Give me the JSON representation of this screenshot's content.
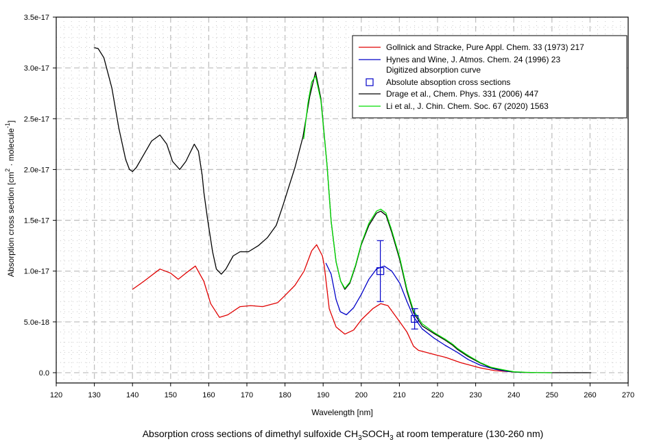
{
  "chart_data": {
    "type": "line",
    "title": "",
    "caption": {
      "prefix": "Absorption cross sections of dimethyl sulfoxide CH",
      "sub1": "3",
      "mid": "SOCH",
      "sub2": "3",
      "suffix": " at room temperature (130-260 nm)"
    },
    "xlabel": "Wavelength [nm]",
    "ylabel": {
      "prefix": "Absorption cross section [cm",
      "sup1": "2",
      "mid": " · molecule",
      "sup2": "-1",
      "suffix": "]"
    },
    "xlim": [
      120,
      270
    ],
    "ylim": [
      -1e-18,
      3.5e-17
    ],
    "x_ticks": [
      120,
      130,
      140,
      150,
      160,
      170,
      180,
      190,
      200,
      210,
      220,
      230,
      240,
      250,
      260,
      270
    ],
    "y_ticks": [
      0,
      5e-18,
      1e-17,
      1.5e-17,
      2e-17,
      2.5e-17,
      3e-17,
      3.5e-17
    ],
    "y_tick_labels": [
      "0.0",
      "5.0e-18",
      "1.0e-17",
      "1.5e-17",
      "2.0e-17",
      "2.5e-17",
      "3.0e-17",
      "3.5e-17"
    ],
    "grid": true,
    "legend_position": "top-right",
    "series": [
      {
        "name": "Gollnick and Stracke, Pure Appl. Chem. 33 (1973) 217",
        "color": "#e00000",
        "style": "line",
        "x": [
          140,
          143,
          147.2,
          150,
          152,
          154,
          156.5,
          158.7,
          160.5,
          162.8,
          165,
          168.2,
          171,
          174.1,
          178.1,
          180,
          182.6,
          185,
          187,
          188.3,
          189.8,
          190.3,
          191.6,
          193.4,
          195.7,
          198,
          200,
          203,
          205.1,
          207,
          210.1,
          212,
          213.7,
          215,
          218,
          222.2,
          226,
          231.2,
          235,
          240.1
        ],
        "y": [
          8.2e-18,
          9e-18,
          1.02e-17,
          9.8e-18,
          9.2e-18,
          9.8e-18,
          1.05e-17,
          9e-18,
          6.8e-18,
          5.45e-18,
          5.7e-18,
          6.5e-18,
          6.6e-18,
          6.5e-18,
          6.9e-18,
          7.6e-18,
          8.6e-18,
          1e-17,
          1.2e-17,
          1.26e-17,
          1.15e-17,
          1.05e-17,
          6.3e-18,
          4.5e-18,
          3.8e-18,
          4.2e-18,
          5.2e-18,
          6.3e-18,
          6.8e-18,
          6.6e-18,
          5e-18,
          4e-18,
          2.6e-18,
          2.2e-18,
          1.9e-18,
          1.5e-18,
          1e-18,
          4.7e-19,
          2e-19,
          7e-20
        ]
      },
      {
        "name": "Hynes and Wine, J. Atmos. Chem. 24 (1996) 23",
        "name_line2": "Digitized absorption curve",
        "color": "#0000c8",
        "style": "line",
        "x": [
          190.7,
          192.1,
          193.4,
          194.5,
          196.1,
          198,
          200,
          202,
          204,
          206,
          208,
          210.1,
          212,
          213.7,
          216,
          219.1,
          222,
          225.2,
          228,
          231.2,
          235,
          238.3,
          242
        ],
        "y": [
          1.08e-17,
          9.7e-18,
          7.2e-18,
          6e-18,
          5.7e-18,
          6.4e-18,
          7.7e-18,
          9.2e-18,
          1.02e-17,
          1.05e-17,
          1e-17,
          8.8e-18,
          7e-18,
          5.5e-18,
          4.3e-18,
          3.4e-18,
          2.7e-18,
          2e-18,
          1.3e-18,
          7.4e-19,
          3.5e-19,
          1.3e-19,
          2e-20
        ]
      },
      {
        "name": "Absolute absoption cross sections",
        "color": "#0000c8",
        "style": "markers",
        "marker": "square",
        "x": [
          205,
          214
        ],
        "y": [
          1e-17,
          5.3e-18
        ],
        "error_low": [
          7e-18,
          4.3e-18
        ],
        "error_high": [
          1.3e-17,
          6.3e-18
        ]
      },
      {
        "name": "Drage et al., Chem. Phys. 331 (2006) 447",
        "color": "#000000",
        "style": "line",
        "x": [
          130,
          131,
          132.5,
          134.6,
          136.4,
          138.2,
          139.2,
          140,
          141,
          143,
          145,
          147.2,
          149,
          150.5,
          152.4,
          154,
          156.2,
          157.3,
          158.3,
          158.7,
          159.7,
          161,
          162,
          163.3,
          164.5,
          166.4,
          168.2,
          170.4,
          173,
          175.4,
          177.7,
          179.5,
          181,
          182.6,
          184.7,
          186.5,
          188,
          189.4,
          191,
          192.1,
          193.4,
          194.6,
          195.7,
          197,
          198.5,
          200,
          202,
          204,
          205.1,
          206.5,
          208,
          210.1,
          212,
          213.7,
          216,
          219.1,
          222,
          224,
          225.2,
          228,
          231.2,
          234,
          237.1,
          240.1,
          243,
          246,
          250,
          255,
          260.3
        ],
        "y": [
          3.2e-17,
          3.19e-17,
          3.1e-17,
          2.8e-17,
          2.41e-17,
          2.1e-17,
          2e-17,
          1.98e-17,
          2.02e-17,
          2.15e-17,
          2.28e-17,
          2.34e-17,
          2.25e-17,
          2.08e-17,
          2e-17,
          2.08e-17,
          2.25e-17,
          2.18e-17,
          1.94e-17,
          1.78e-17,
          1.51e-17,
          1.19e-17,
          1.02e-17,
          9.7e-18,
          1.02e-17,
          1.15e-17,
          1.19e-17,
          1.19e-17,
          1.25e-17,
          1.33e-17,
          1.45e-17,
          1.65e-17,
          1.83e-17,
          2.02e-17,
          2.32e-17,
          2.72e-17,
          2.96e-17,
          2.7e-17,
          2.05e-17,
          1.49e-17,
          1.09e-17,
          9e-18,
          8.2e-18,
          8.8e-18,
          1.05e-17,
          1.26e-17,
          1.45e-17,
          1.57e-17,
          1.59e-17,
          1.55e-17,
          1.38e-17,
          1.11e-17,
          8e-18,
          5.9e-18,
          4.6e-18,
          3.85e-18,
          3.2e-18,
          2.7e-18,
          2.3e-18,
          1.6e-18,
          9.5e-19,
          5e-19,
          2.7e-19,
          7e-20,
          3e-20,
          1e-20,
          0,
          0,
          0
        ]
      },
      {
        "name": "Li et al., J. Chin. Chem. Soc. 67 (2020) 1563",
        "color": "#00dd00",
        "style": "line",
        "x": [
          184.9,
          186,
          187,
          188,
          189.4,
          191,
          192.1,
          193.4,
          194.6,
          195.7,
          197,
          198.5,
          200,
          202,
          204,
          205.1,
          206.5,
          208,
          210.1,
          212,
          213.7,
          216,
          219.1,
          222,
          224,
          225.2,
          228,
          231.2,
          234,
          237.1,
          240.1,
          243,
          246,
          250
        ],
        "y": [
          2.3e-17,
          2.65e-17,
          2.86e-17,
          2.92e-17,
          2.68e-17,
          2.05e-17,
          1.49e-17,
          1.09e-17,
          9e-18,
          8.3e-18,
          8.9e-18,
          1.06e-17,
          1.27e-17,
          1.47e-17,
          1.59e-17,
          1.61e-17,
          1.57e-17,
          1.4e-17,
          1.13e-17,
          8.2e-18,
          6.1e-18,
          4.8e-18,
          3.95e-18,
          3.3e-18,
          2.8e-18,
          2.4e-18,
          1.7e-18,
          1e-18,
          5.4e-19,
          3e-19,
          9e-20,
          4e-20,
          1e-20,
          0
        ]
      }
    ]
  }
}
